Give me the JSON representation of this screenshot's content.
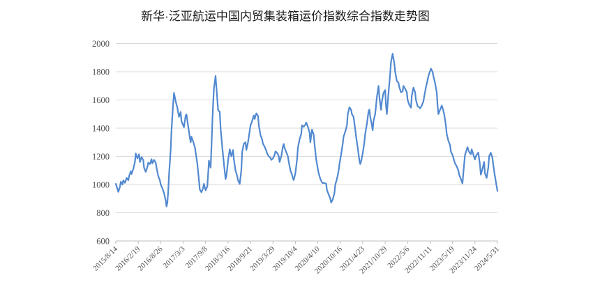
{
  "title": "新华·泛亚航运中国内贸集装箱运价指数综合指数走势图",
  "colors": {
    "line": "#5289d0",
    "grid": "#d9d9d9",
    "axis": "#bfbfbf",
    "tick": "#bfbfbf",
    "label": "#4d4d4d",
    "title": "#1a1a1a",
    "background": "#ffffff"
  },
  "chart_data": {
    "type": "line",
    "title": "新华·泛亚航运中国内贸集装箱运价指数综合指数走势图",
    "xlabel": "",
    "ylabel": "",
    "ylim": [
      600,
      2000
    ],
    "y_ticks": [
      600,
      800,
      1000,
      1200,
      1400,
      1600,
      1800,
      2000
    ],
    "grid": "horizontal",
    "legend": "none",
    "x_unit": "week",
    "x_total_weeks": 459,
    "x_label_every_weeks": 27,
    "x_tick_labels": [
      "2015/8/14",
      "2016/2/19",
      "2016/8/26",
      "2017/3/3",
      "2017/9/8",
      "2018/3/16",
      "2018/9/21",
      "2019/3/29",
      "2019/10/4",
      "2020/4/10",
      "2020/10/16",
      "2021/4/23",
      "2021/10/29",
      "2022/5/6",
      "2022/11/11",
      "2023/5/19",
      "2023/11/24",
      "2024/5/31"
    ],
    "series": [
      {
        "color": "#5289d0",
        "points": [
          [
            0,
            1005
          ],
          [
            2,
            968
          ],
          [
            3,
            948
          ],
          [
            5,
            985
          ],
          [
            6,
            1020
          ],
          [
            8,
            1000
          ],
          [
            9,
            1030
          ],
          [
            11,
            1012
          ],
          [
            13,
            1048
          ],
          [
            15,
            1030
          ],
          [
            16,
            1060
          ],
          [
            18,
            1095
          ],
          [
            19,
            1075
          ],
          [
            21,
            1110
          ],
          [
            23,
            1160
          ],
          [
            24,
            1220
          ],
          [
            26,
            1185
          ],
          [
            28,
            1215
          ],
          [
            29,
            1160
          ],
          [
            31,
            1195
          ],
          [
            33,
            1175
          ],
          [
            34,
            1120
          ],
          [
            36,
            1090
          ],
          [
            38,
            1125
          ],
          [
            39,
            1155
          ],
          [
            41,
            1145
          ],
          [
            43,
            1180
          ],
          [
            44,
            1150
          ],
          [
            46,
            1175
          ],
          [
            48,
            1155
          ],
          [
            49,
            1120
          ],
          [
            51,
            1060
          ],
          [
            53,
            1030
          ],
          [
            54,
            1000
          ],
          [
            56,
            975
          ],
          [
            58,
            940
          ],
          [
            59,
            912
          ],
          [
            60,
            890
          ],
          [
            61,
            845
          ],
          [
            62,
            870
          ],
          [
            63,
            950
          ],
          [
            64,
            1070
          ],
          [
            65,
            1160
          ],
          [
            66,
            1250
          ],
          [
            67,
            1380
          ],
          [
            68,
            1480
          ],
          [
            69,
            1575
          ],
          [
            70,
            1650
          ],
          [
            72,
            1590
          ],
          [
            74,
            1545
          ],
          [
            75,
            1510
          ],
          [
            76,
            1480
          ],
          [
            78,
            1515
          ],
          [
            79,
            1450
          ],
          [
            82,
            1407
          ],
          [
            84,
            1490
          ],
          [
            85,
            1497
          ],
          [
            87,
            1415
          ],
          [
            89,
            1333
          ],
          [
            90,
            1300
          ],
          [
            91,
            1340
          ],
          [
            93,
            1305
          ],
          [
            95,
            1268
          ],
          [
            96,
            1230
          ],
          [
            98,
            1150
          ],
          [
            100,
            1030
          ],
          [
            101,
            965
          ],
          [
            103,
            945
          ],
          [
            105,
            975
          ],
          [
            106,
            1005
          ],
          [
            108,
            960
          ],
          [
            110,
            985
          ],
          [
            111,
            1070
          ],
          [
            112,
            1170
          ],
          [
            114,
            1120
          ],
          [
            115,
            1250
          ],
          [
            116,
            1420
          ],
          [
            117,
            1560
          ],
          [
            118,
            1680
          ],
          [
            120,
            1770
          ],
          [
            121,
            1690
          ],
          [
            123,
            1530
          ],
          [
            125,
            1515
          ],
          [
            126,
            1400
          ],
          [
            128,
            1270
          ],
          [
            130,
            1150
          ],
          [
            132,
            1040
          ],
          [
            133,
            1060
          ],
          [
            135,
            1170
          ],
          [
            137,
            1250
          ],
          [
            139,
            1200
          ],
          [
            141,
            1245
          ],
          [
            142,
            1180
          ],
          [
            144,
            1100
          ],
          [
            146,
            1060
          ],
          [
            147,
            1030
          ],
          [
            149,
            1005
          ],
          [
            151,
            1100
          ],
          [
            152,
            1230
          ],
          [
            154,
            1290
          ],
          [
            156,
            1300
          ],
          [
            157,
            1245
          ],
          [
            159,
            1300
          ],
          [
            161,
            1380
          ],
          [
            162,
            1420
          ],
          [
            164,
            1450
          ],
          [
            166,
            1490
          ],
          [
            167,
            1465
          ],
          [
            169,
            1505
          ],
          [
            171,
            1488
          ],
          [
            172,
            1420
          ],
          [
            174,
            1350
          ],
          [
            176,
            1320
          ],
          [
            177,
            1290
          ],
          [
            179,
            1268
          ],
          [
            181,
            1240
          ],
          [
            182,
            1220
          ],
          [
            184,
            1200
          ],
          [
            186,
            1190
          ],
          [
            187,
            1175
          ],
          [
            189,
            1185
          ],
          [
            191,
            1210
          ],
          [
            192,
            1235
          ],
          [
            194,
            1225
          ],
          [
            196,
            1200
          ],
          [
            197,
            1160
          ],
          [
            199,
            1200
          ],
          [
            201,
            1270
          ],
          [
            202,
            1288
          ],
          [
            203,
            1260
          ],
          [
            205,
            1230
          ],
          [
            207,
            1200
          ],
          [
            208,
            1160
          ],
          [
            210,
            1100
          ],
          [
            212,
            1070
          ],
          [
            213,
            1045
          ],
          [
            214,
            1032
          ],
          [
            216,
            1080
          ],
          [
            218,
            1180
          ],
          [
            219,
            1260
          ],
          [
            221,
            1320
          ],
          [
            223,
            1360
          ],
          [
            224,
            1420
          ],
          [
            226,
            1410
          ],
          [
            228,
            1425
          ],
          [
            229,
            1440
          ],
          [
            231,
            1410
          ],
          [
            233,
            1370
          ],
          [
            234,
            1300
          ],
          [
            236,
            1390
          ],
          [
            238,
            1355
          ],
          [
            239,
            1290
          ],
          [
            241,
            1180
          ],
          [
            243,
            1110
          ],
          [
            244,
            1080
          ],
          [
            246,
            1040
          ],
          [
            248,
            1016
          ],
          [
            249,
            1010
          ],
          [
            251,
            1012
          ],
          [
            253,
            1005
          ],
          [
            254,
            960
          ],
          [
            256,
            930
          ],
          [
            258,
            900
          ],
          [
            259,
            872
          ],
          [
            261,
            895
          ],
          [
            263,
            940
          ],
          [
            264,
            1000
          ],
          [
            266,
            1040
          ],
          [
            268,
            1100
          ],
          [
            269,
            1145
          ],
          [
            271,
            1215
          ],
          [
            273,
            1290
          ],
          [
            274,
            1340
          ],
          [
            276,
            1375
          ],
          [
            278,
            1420
          ],
          [
            279,
            1500
          ],
          [
            281,
            1548
          ],
          [
            283,
            1530
          ],
          [
            284,
            1500
          ],
          [
            286,
            1480
          ],
          [
            288,
            1390
          ],
          [
            289,
            1340
          ],
          [
            291,
            1260
          ],
          [
            293,
            1170
          ],
          [
            294,
            1145
          ],
          [
            295,
            1165
          ],
          [
            297,
            1220
          ],
          [
            299,
            1300
          ],
          [
            300,
            1360
          ],
          [
            302,
            1430
          ],
          [
            304,
            1520
          ],
          [
            305,
            1532
          ],
          [
            306,
            1480
          ],
          [
            308,
            1420
          ],
          [
            309,
            1385
          ],
          [
            310,
            1450
          ],
          [
            312,
            1500
          ],
          [
            314,
            1620
          ],
          [
            316,
            1700
          ],
          [
            317,
            1620
          ],
          [
            319,
            1530
          ],
          [
            320,
            1590
          ],
          [
            322,
            1650
          ],
          [
            324,
            1670
          ],
          [
            325,
            1560
          ],
          [
            326,
            1500
          ],
          [
            328,
            1650
          ],
          [
            330,
            1790
          ],
          [
            331,
            1870
          ],
          [
            333,
            1928
          ],
          [
            335,
            1860
          ],
          [
            336,
            1800
          ],
          [
            338,
            1735
          ],
          [
            340,
            1722
          ],
          [
            341,
            1690
          ],
          [
            343,
            1655
          ],
          [
            345,
            1660
          ],
          [
            346,
            1700
          ],
          [
            348,
            1680
          ],
          [
            350,
            1655
          ],
          [
            351,
            1600
          ],
          [
            353,
            1565
          ],
          [
            355,
            1545
          ],
          [
            356,
            1630
          ],
          [
            358,
            1688
          ],
          [
            360,
            1655
          ],
          [
            361,
            1600
          ],
          [
            363,
            1555
          ],
          [
            365,
            1548
          ],
          [
            366,
            1540
          ],
          [
            368,
            1560
          ],
          [
            370,
            1590
          ],
          [
            371,
            1625
          ],
          [
            373,
            1690
          ],
          [
            375,
            1740
          ],
          [
            376,
            1770
          ],
          [
            378,
            1805
          ],
          [
            379,
            1822
          ],
          [
            381,
            1800
          ],
          [
            382,
            1770
          ],
          [
            384,
            1720
          ],
          [
            386,
            1655
          ],
          [
            387,
            1560
          ],
          [
            388,
            1500
          ],
          [
            390,
            1530
          ],
          [
            392,
            1560
          ],
          [
            393,
            1545
          ],
          [
            395,
            1500
          ],
          [
            397,
            1420
          ],
          [
            398,
            1360
          ],
          [
            400,
            1310
          ],
          [
            402,
            1280
          ],
          [
            403,
            1235
          ],
          [
            405,
            1210
          ],
          [
            407,
            1170
          ],
          [
            408,
            1150
          ],
          [
            410,
            1130
          ],
          [
            412,
            1100
          ],
          [
            413,
            1070
          ],
          [
            415,
            1040
          ],
          [
            417,
            1008
          ],
          [
            418,
            1080
          ],
          [
            420,
            1210
          ],
          [
            422,
            1245
          ],
          [
            423,
            1265
          ],
          [
            425,
            1230
          ],
          [
            427,
            1215
          ],
          [
            428,
            1250
          ],
          [
            430,
            1215
          ],
          [
            432,
            1178
          ],
          [
            433,
            1200
          ],
          [
            436,
            1227
          ],
          [
            438,
            1140
          ],
          [
            439,
            1070
          ],
          [
            441,
            1110
          ],
          [
            443,
            1161
          ],
          [
            444,
            1080
          ],
          [
            446,
            1047
          ],
          [
            448,
            1120
          ],
          [
            449,
            1200
          ],
          [
            451,
            1225
          ],
          [
            453,
            1190
          ],
          [
            454,
            1140
          ],
          [
            456,
            1060
          ],
          [
            458,
            990
          ],
          [
            459,
            955
          ]
        ]
      }
    ]
  }
}
